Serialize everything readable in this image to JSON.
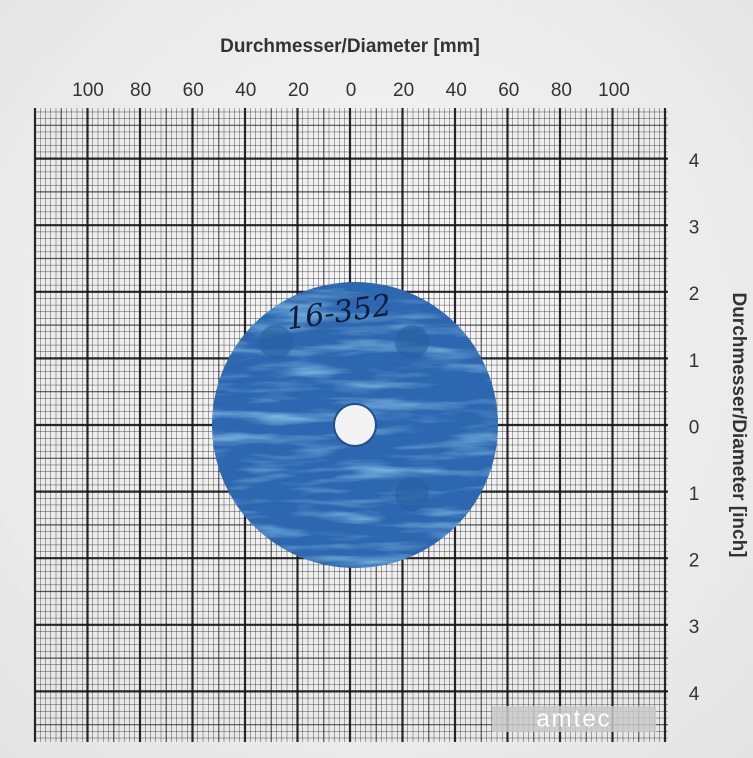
{
  "header": {
    "title": "Durchmesser/Diameter [mm]"
  },
  "top_scale": {
    "labels": [
      "100",
      "80",
      "60",
      "40",
      "20",
      "0",
      "20",
      "40",
      "60",
      "80",
      "100"
    ]
  },
  "right_scale": {
    "title": "Durchmesser/Diameter [inch]",
    "labels": [
      "4",
      "3",
      "2",
      "1",
      "0",
      "1",
      "2",
      "3",
      "4"
    ]
  },
  "gasket": {
    "marking": "16-352"
  },
  "watermark": "amtec"
}
